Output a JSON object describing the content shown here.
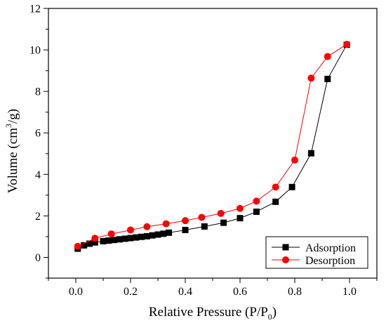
{
  "chart_data": {
    "type": "line",
    "title": "",
    "xlabel": "Relative Pressure (P/P",
    "xlabel_sub": "0",
    "xlabel_tail": ")",
    "ylabel": "Volume (cm",
    "ylabel_sup": "3",
    "ylabel_tail": "/g)",
    "xlim": [
      -0.1,
      1.1
    ],
    "ylim": [
      -1,
      12
    ],
    "xticks": [
      0.0,
      0.2,
      0.4,
      0.6,
      0.8,
      1.0
    ],
    "xtick_labels": [
      "0.0",
      "0.2",
      "0.4",
      "0.6",
      "0.8",
      "1.0"
    ],
    "yticks": [
      0,
      2,
      4,
      6,
      8,
      10,
      12
    ],
    "ytick_labels": [
      "0",
      "2",
      "4",
      "6",
      "8",
      "10",
      "12"
    ],
    "grid": false,
    "legend_position": "bottom-right",
    "series": [
      {
        "name": "Adsorption",
        "color": "#000000",
        "marker": "square",
        "x": [
          0.007,
          0.03,
          0.05,
          0.07,
          0.1,
          0.12,
          0.14,
          0.16,
          0.18,
          0.2,
          0.22,
          0.24,
          0.26,
          0.28,
          0.3,
          0.32,
          0.34,
          0.4,
          0.47,
          0.54,
          0.6,
          0.66,
          0.73,
          0.79,
          0.86,
          0.92,
          0.99
        ],
        "y": [
          0.42,
          0.58,
          0.66,
          0.72,
          0.78,
          0.81,
          0.84,
          0.87,
          0.9,
          0.93,
          0.96,
          0.99,
          1.02,
          1.06,
          1.1,
          1.14,
          1.19,
          1.32,
          1.49,
          1.67,
          1.89,
          2.2,
          2.68,
          3.39,
          5.02,
          8.6,
          10.25
        ]
      },
      {
        "name": "Desorption",
        "color": "#ff0000",
        "marker": "circle",
        "x": [
          0.007,
          0.07,
          0.13,
          0.2,
          0.26,
          0.33,
          0.4,
          0.46,
          0.53,
          0.6,
          0.66,
          0.73,
          0.8,
          0.86,
          0.92,
          0.99
        ],
        "y": [
          0.53,
          0.92,
          1.13,
          1.32,
          1.48,
          1.62,
          1.77,
          1.93,
          2.12,
          2.36,
          2.71,
          3.39,
          4.69,
          8.64,
          9.68,
          10.27
        ]
      }
    ]
  }
}
